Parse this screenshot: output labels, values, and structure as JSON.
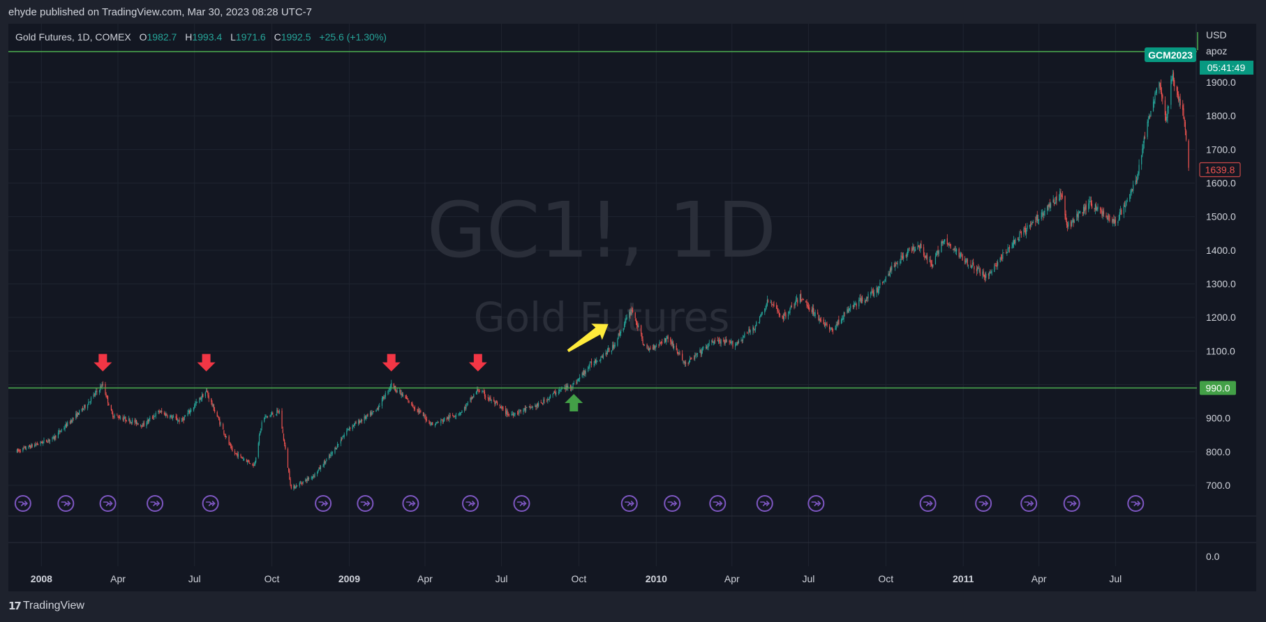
{
  "publisher": "ehyde published on TradingView.com, Mar 30, 2023 08:28 UTC-7",
  "legend": {
    "symbol": "Gold Futures, 1D, COMEX",
    "o_label": "O",
    "o_value": "1982.7",
    "h_label": "H",
    "h_value": "1993.4",
    "l_label": "L",
    "l_value": "1971.6",
    "c_label": "C",
    "c_value": "1992.5",
    "change": "+25.6 (+1.30%)"
  },
  "watermark": {
    "line1": "GC1!, 1D",
    "line2": "Gold Futures"
  },
  "price_axis": {
    "currency": "USD",
    "extra": "apoz"
  },
  "badges": {
    "contract": "GCM2023",
    "countdown": "05:41:49",
    "support": "990.0",
    "last_price": "1639.8"
  },
  "footer": {
    "brand": "TradingView",
    "logo_icon": "tradingview-logo-icon"
  },
  "colors": {
    "up": "#26a69a",
    "down": "#ef5350",
    "line": "#4caf50",
    "arrow_red": "#f23645",
    "arrow_green": "#43a047",
    "arrow_yellow": "#ffeb3b",
    "event": "#7e57c2",
    "contract_badge": "#089981"
  },
  "chart_data": {
    "type": "candlestick",
    "x_range": [
      "2007-12-01",
      "2011-09-30"
    ],
    "ylim": [
      650,
      1980
    ],
    "y_ticks": [
      "1900.0",
      "1800.0",
      "1700.0",
      "1600.0",
      "1500.0",
      "1400.0",
      "1300.0",
      "1200.0",
      "1100.0",
      "1000.0",
      "900.0",
      "800.0",
      "700.0"
    ],
    "indicator_tick": "0.0",
    "x_ticks": [
      {
        "label": "2008",
        "bold": true
      },
      {
        "label": "Apr",
        "bold": false
      },
      {
        "label": "Jul",
        "bold": false
      },
      {
        "label": "Oct",
        "bold": false
      },
      {
        "label": "2009",
        "bold": true
      },
      {
        "label": "Apr",
        "bold": false
      },
      {
        "label": "Jul",
        "bold": false
      },
      {
        "label": "Oct",
        "bold": false
      },
      {
        "label": "2010",
        "bold": true
      },
      {
        "label": "Apr",
        "bold": false
      },
      {
        "label": "Jul",
        "bold": false
      },
      {
        "label": "Oct",
        "bold": false
      },
      {
        "label": "2011",
        "bold": true
      },
      {
        "label": "Apr",
        "bold": false
      },
      {
        "label": "Jul",
        "bold": false
      }
    ],
    "price_path": [
      [
        "2007-12-01",
        800
      ],
      [
        "2008-01-15",
        840
      ],
      [
        "2008-02-20",
        930
      ],
      [
        "2008-03-14",
        1000
      ],
      [
        "2008-03-25",
        910
      ],
      [
        "2008-05-01",
        880
      ],
      [
        "2008-05-20",
        920
      ],
      [
        "2008-06-15",
        890
      ],
      [
        "2008-07-15",
        980
      ],
      [
        "2008-08-15",
        800
      ],
      [
        "2008-09-10",
        760
      ],
      [
        "2008-09-20",
        900
      ],
      [
        "2008-10-10",
        920
      ],
      [
        "2008-10-24",
        690
      ],
      [
        "2008-11-20",
        730
      ],
      [
        "2008-12-10",
        790
      ],
      [
        "2008-12-31",
        870
      ],
      [
        "2009-02-01",
        920
      ],
      [
        "2009-02-20",
        1000
      ],
      [
        "2009-04-10",
        880
      ],
      [
        "2009-05-15",
        920
      ],
      [
        "2009-06-03",
        985
      ],
      [
        "2009-07-10",
        910
      ],
      [
        "2009-08-15",
        940
      ],
      [
        "2009-09-05",
        980
      ],
      [
        "2009-09-25",
        1000
      ],
      [
        "2009-10-15",
        1060
      ],
      [
        "2009-11-10",
        1110
      ],
      [
        "2009-12-03",
        1225
      ],
      [
        "2009-12-20",
        1100
      ],
      [
        "2010-01-15",
        1140
      ],
      [
        "2010-02-05",
        1060
      ],
      [
        "2010-03-10",
        1130
      ],
      [
        "2010-04-05",
        1120
      ],
      [
        "2010-05-01",
        1180
      ],
      [
        "2010-05-14",
        1250
      ],
      [
        "2010-06-01",
        1200
      ],
      [
        "2010-06-21",
        1260
      ],
      [
        "2010-07-28",
        1160
      ],
      [
        "2010-08-20",
        1230
      ],
      [
        "2010-09-20",
        1280
      ],
      [
        "2010-10-15",
        1370
      ],
      [
        "2010-11-09",
        1420
      ],
      [
        "2010-11-25",
        1350
      ],
      [
        "2010-12-07",
        1430
      ],
      [
        "2011-01-28",
        1320
      ],
      [
        "2011-03-01",
        1420
      ],
      [
        "2011-04-28",
        1570
      ],
      [
        "2011-05-05",
        1470
      ],
      [
        "2011-06-01",
        1540
      ],
      [
        "2011-07-01",
        1480
      ],
      [
        "2011-07-25",
        1600
      ],
      [
        "2011-08-10",
        1800
      ],
      [
        "2011-08-22",
        1910
      ],
      [
        "2011-08-30",
        1780
      ],
      [
        "2011-09-06",
        1920
      ],
      [
        "2011-09-20",
        1800
      ],
      [
        "2011-09-26",
        1640
      ]
    ],
    "horizontal_lines": [
      {
        "price": 990,
        "label": "990.0"
      },
      {
        "price": 1992.5,
        "label": "GCM2023"
      }
    ],
    "annotations": [
      {
        "type": "arrow-down",
        "color": "red",
        "date": "2008-03-14",
        "price": 1062
      },
      {
        "type": "arrow-down",
        "color": "red",
        "date": "2008-07-15",
        "price": 1062
      },
      {
        "type": "arrow-down",
        "color": "red",
        "date": "2009-02-20",
        "price": 1062
      },
      {
        "type": "arrow-down",
        "color": "red",
        "date": "2009-06-03",
        "price": 1062
      },
      {
        "type": "arrow-up",
        "color": "green",
        "date": "2009-09-25",
        "price": 945
      },
      {
        "type": "arrow-diagonal",
        "color": "yellow",
        "from_date": "2009-09-18",
        "from_price": 1100,
        "to_date": "2009-11-05",
        "to_price": 1180
      }
    ],
    "event_markers": [
      "2007-12-10",
      "2008-01-30",
      "2008-03-20",
      "2008-05-15",
      "2008-07-20",
      "2008-12-01",
      "2009-01-20",
      "2009-03-15",
      "2009-05-25",
      "2009-07-25",
      "2009-11-30",
      "2010-01-20",
      "2010-03-15",
      "2010-05-10",
      "2010-07-10",
      "2010-11-20",
      "2011-01-25",
      "2011-03-20",
      "2011-05-10",
      "2011-07-25"
    ]
  }
}
